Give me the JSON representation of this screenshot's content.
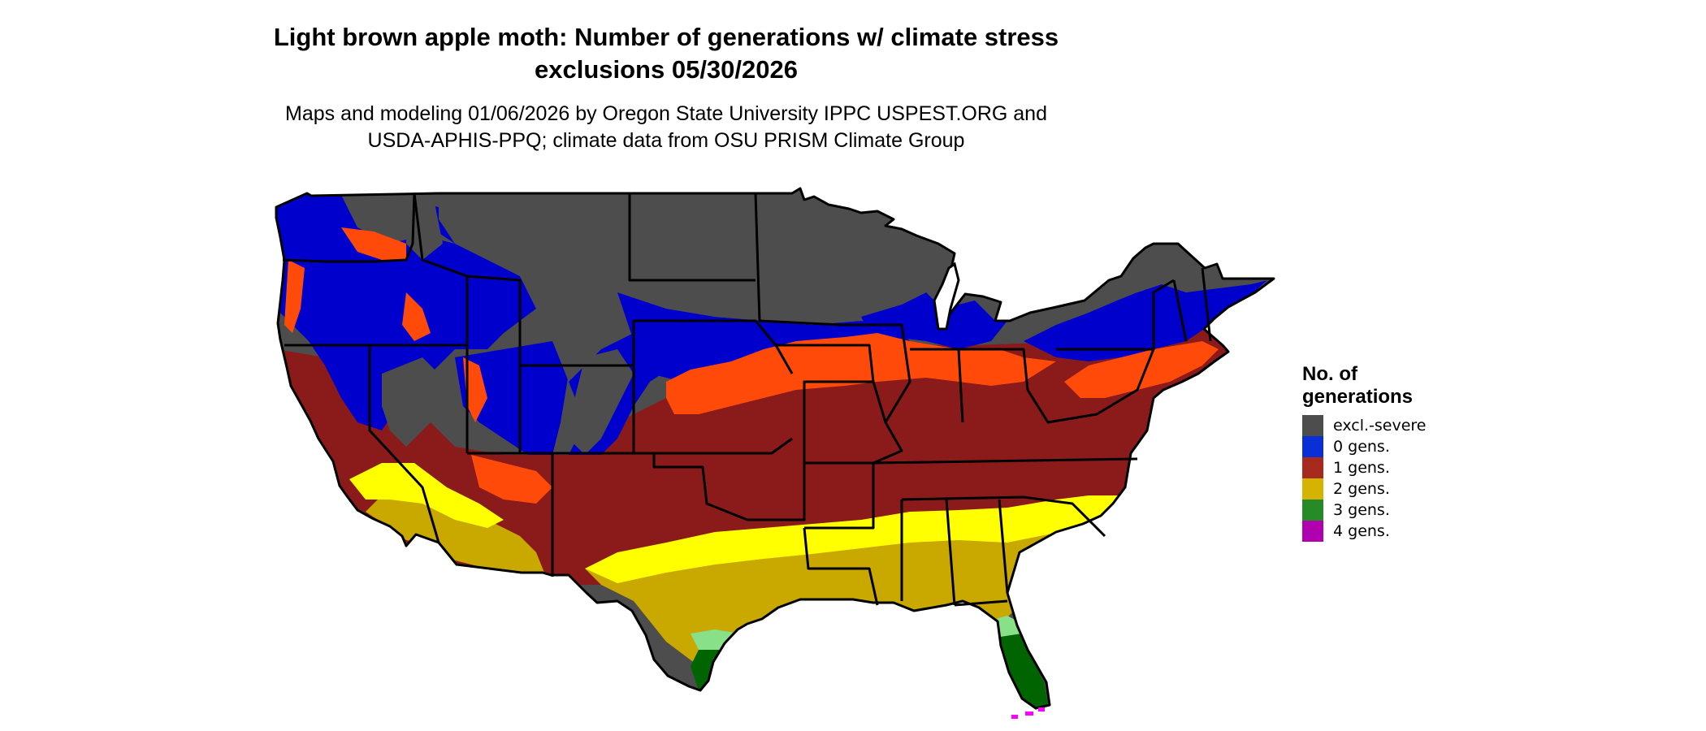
{
  "header": {
    "title_line1": "Light brown apple moth: Number of generations w/ climate stress",
    "title_line2": "exclusions 05/30/2026",
    "subtitle_line1": "Maps and modeling 01/06/2026 by Oregon State University IPPC USPEST.ORG and",
    "subtitle_line2": "USDA-APHIS-PPQ; climate data from OSU PRISM Climate Group"
  },
  "legend": {
    "title_line1": "No. of",
    "title_line2": "generations",
    "items": [
      {
        "label": "excl.-severe",
        "color": "#4d4d4d"
      },
      {
        "label": "0 gens.",
        "color": "#0a2fd6"
      },
      {
        "label": "1 gens.",
        "color": "#a8291e"
      },
      {
        "label": "2 gens.",
        "color": "#d4b400"
      },
      {
        "label": "3 gens.",
        "color": "#268a26"
      },
      {
        "label": "4 gens.",
        "color": "#b000b0"
      }
    ]
  },
  "map_colors": {
    "excluded": "#4d4d4d",
    "zero_gens_blue": "#0000cc",
    "one_gen_orange": "#ff4a0a",
    "one_gen_darkred": "#8b1a1a",
    "two_gens_yellow": "#ffff00",
    "two_gens_gold": "#c9a800",
    "three_gens_light": "#88e088",
    "three_gens_dark": "#006400",
    "four_gens": "#ff00ff"
  }
}
